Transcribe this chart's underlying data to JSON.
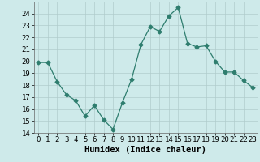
{
  "x": [
    0,
    1,
    2,
    3,
    4,
    5,
    6,
    7,
    8,
    9,
    10,
    11,
    12,
    13,
    14,
    15,
    16,
    17,
    18,
    19,
    20,
    21,
    22,
    23
  ],
  "y": [
    19.9,
    19.9,
    18.3,
    17.2,
    16.7,
    15.4,
    16.3,
    15.1,
    14.3,
    16.5,
    18.5,
    21.4,
    22.9,
    22.5,
    23.8,
    24.5,
    21.5,
    21.2,
    21.3,
    20.0,
    19.1,
    19.1,
    18.4,
    17.8
  ],
  "line_color": "#2e7d6e",
  "marker": "D",
  "marker_size": 2.5,
  "bg_color": "#ceeaea",
  "grid_color": "#b0cccc",
  "xlabel": "Humidex (Indice chaleur)",
  "xlim": [
    -0.5,
    23.5
  ],
  "ylim": [
    14,
    25
  ],
  "yticks": [
    14,
    15,
    16,
    17,
    18,
    19,
    20,
    21,
    22,
    23,
    24
  ],
  "xticks": [
    0,
    1,
    2,
    3,
    4,
    5,
    6,
    7,
    8,
    9,
    10,
    11,
    12,
    13,
    14,
    15,
    16,
    17,
    18,
    19,
    20,
    21,
    22,
    23
  ],
  "tick_labelsize": 6.5,
  "xlabel_fontsize": 7.5
}
